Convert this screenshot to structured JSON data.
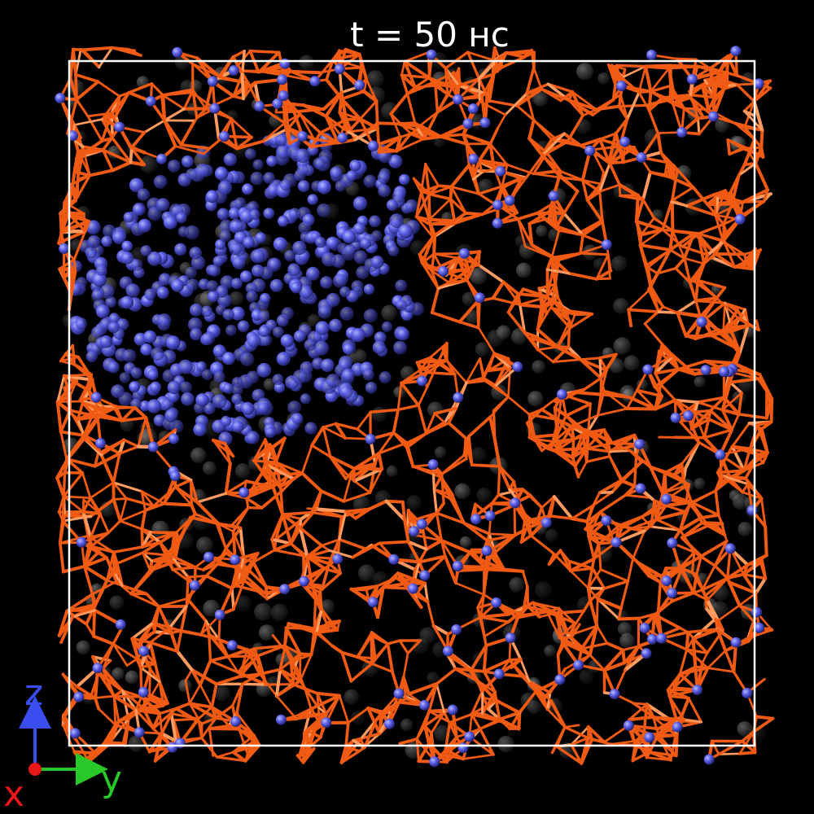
{
  "title": "t = 50 нс",
  "axes": {
    "z": "z",
    "x": "x",
    "y": "y"
  },
  "colors": {
    "background": "#000000",
    "box": "#ffffff",
    "network_bonds": "#f05a12",
    "network_highlight": "#ff9a60",
    "blue_atoms": "#5a5fe8",
    "ghost_atoms": "#9a9a9a",
    "axis_z": "#3a4ef0",
    "axis_y": "#28c828",
    "axis_x": "#e81818"
  }
}
